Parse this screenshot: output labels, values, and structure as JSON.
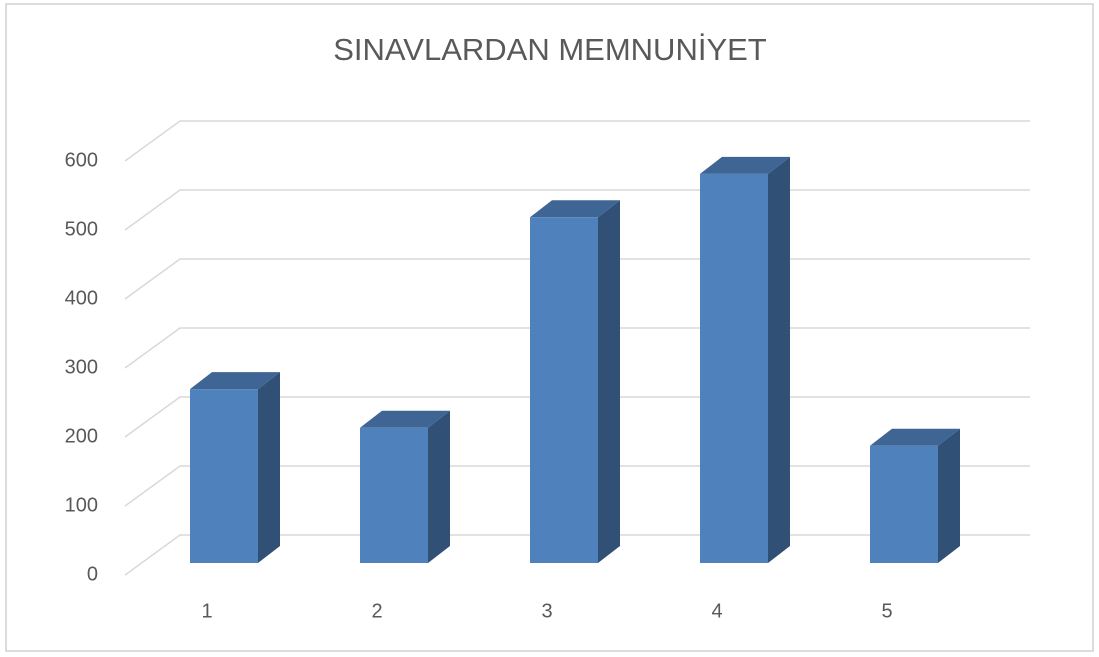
{
  "chart_data": {
    "type": "bar3d",
    "title": "SINAVLARDAN MEMNUNİYET",
    "categories": [
      "1",
      "2",
      "3",
      "4",
      "5"
    ],
    "values": [
      252,
      196,
      501,
      564,
      170
    ],
    "color": "#4f81bd",
    "ylim": [
      0,
      600
    ],
    "yticks": [
      0,
      100,
      200,
      300,
      400,
      500,
      600
    ],
    "grid": true
  }
}
